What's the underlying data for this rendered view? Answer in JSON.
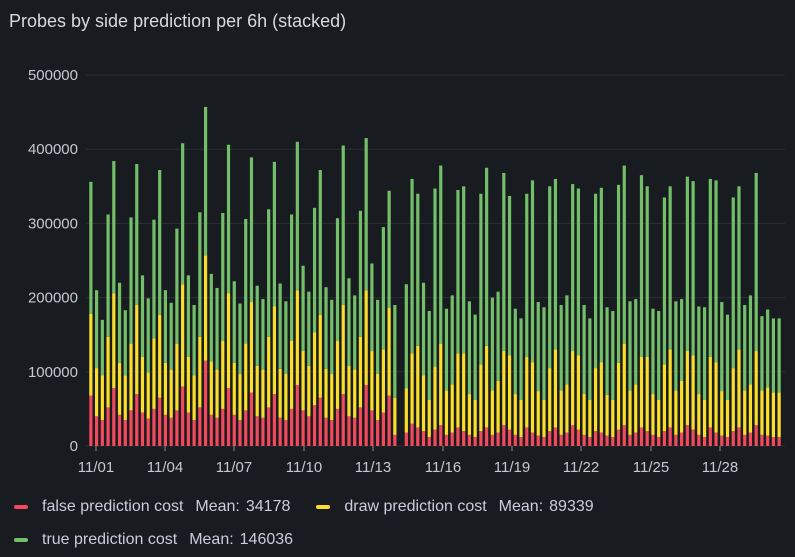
{
  "panel": {
    "title": "Probes by side prediction per 6h (stacked)"
  },
  "chart_data": {
    "type": "bar",
    "stacked": true,
    "title": "Probes by side prediction per 6h (stacked)",
    "xlabel": "",
    "ylabel": "",
    "ylim": [
      0,
      500000
    ],
    "yticks": [
      "0",
      "100000",
      "200000",
      "300000",
      "400000",
      "500000"
    ],
    "xticks": [
      "11/01",
      "11/04",
      "11/07",
      "11/10",
      "11/13",
      "11/16",
      "11/19",
      "11/22",
      "11/25",
      "11/28"
    ],
    "grid": true,
    "legend_position": "bottom",
    "gap_after_index": 53,
    "categories_note": "6-hour buckets, 4 per day, 11/01 through 11/30",
    "series": [
      {
        "name": "false prediction cost",
        "color": "#f2495c",
        "mean": "34178",
        "values": [
          68000,
          40000,
          35000,
          52000,
          78000,
          42000,
          35000,
          48000,
          70000,
          45000,
          37000,
          50000,
          65000,
          42000,
          38000,
          48000,
          80000,
          45000,
          35000,
          52000,
          115000,
          42000,
          38000,
          50000,
          78000,
          42000,
          35000,
          48000,
          72000,
          40000,
          38000,
          52000,
          70000,
          38000,
          35000,
          50000,
          82000,
          48000,
          40000,
          55000,
          65000,
          38000,
          35000,
          50000,
          70000,
          40000,
          38000,
          52000,
          82000,
          48000,
          35000,
          45000,
          68000,
          15000,
          18000,
          30000,
          25000,
          20000,
          12000,
          22000,
          28000,
          15000,
          18000,
          25000,
          20000,
          15000,
          12000,
          20000,
          25000,
          15000,
          18000,
          28000,
          22000,
          15000,
          12000,
          25000,
          18000,
          14000,
          12000,
          20000,
          25000,
          15000,
          18000,
          28000,
          22000,
          15000,
          12000,
          20000,
          18000,
          14000,
          12000,
          22000,
          28000,
          15000,
          18000,
          25000,
          20000,
          15000,
          12000,
          20000,
          25000,
          15000,
          18000,
          28000,
          22000,
          15000,
          12000,
          25000,
          18000,
          14000,
          12000,
          20000,
          25000,
          15000,
          18000,
          28000,
          15000,
          14000,
          12000,
          12000
        ]
      },
      {
        "name": "draw prediction cost",
        "color": "#fade2a",
        "mean": "89339",
        "values": [
          110000,
          65000,
          60000,
          95000,
          128000,
          70000,
          60000,
          90000,
          120000,
          75000,
          62000,
          95000,
          112000,
          70000,
          65000,
          90000,
          138000,
          75000,
          60000,
          95000,
          142000,
          72000,
          65000,
          92000,
          128000,
          70000,
          62000,
          90000,
          122000,
          68000,
          65000,
          95000,
          118000,
          66000,
          62000,
          92000,
          128000,
          80000,
          68000,
          98000,
          112000,
          66000,
          62000,
          92000,
          120000,
          68000,
          65000,
          95000,
          128000,
          80000,
          62000,
          85000,
          118000,
          50000,
          60000,
          95000,
          110000,
          75000,
          50000,
          85000,
          110000,
          60000,
          65000,
          100000,
          105000,
          55000,
          50000,
          90000,
          110000,
          60000,
          70000,
          100000,
          100000,
          55000,
          50000,
          95000,
          95000,
          60000,
          50000,
          85000,
          105000,
          60000,
          65000,
          100000,
          100000,
          55000,
          50000,
          85000,
          95000,
          55000,
          50000,
          90000,
          110000,
          60000,
          65000,
          95000,
          100000,
          55000,
          50000,
          90000,
          105000,
          60000,
          70000,
          100000,
          100000,
          55000,
          50000,
          95000,
          95000,
          60000,
          50000,
          85000,
          105000,
          60000,
          65000,
          100000,
          60000,
          65000,
          60000,
          60000
        ]
      },
      {
        "name": "true prediction cost",
        "color": "#73bf69",
        "mean": "146036",
        "values": [
          178000,
          105000,
          75000,
          165000,
          178000,
          108000,
          88000,
          170000,
          190000,
          110000,
          100000,
          160000,
          195000,
          98000,
          90000,
          155000,
          190000,
          110000,
          95000,
          168000,
          200000,
          118000,
          110000,
          172000,
          200000,
          110000,
          95000,
          168000,
          195000,
          108000,
          95000,
          172000,
          195000,
          115000,
          98000,
          170000,
          200000,
          115000,
          100000,
          168000,
          195000,
          110000,
          100000,
          165000,
          215000,
          118000,
          100000,
          170000,
          205000,
          118000,
          100000,
          165000,
          158000,
          125000,
          140000,
          235000,
          205000,
          125000,
          120000,
          240000,
          240000,
          110000,
          120000,
          220000,
          225000,
          125000,
          115000,
          230000,
          240000,
          125000,
          120000,
          240000,
          215000,
          115000,
          110000,
          220000,
          245000,
          120000,
          125000,
          245000,
          230000,
          115000,
          120000,
          225000,
          225000,
          120000,
          110000,
          235000,
          235000,
          118000,
          120000,
          240000,
          240000,
          120000,
          115000,
          245000,
          230000,
          115000,
          120000,
          225000,
          220000,
          120000,
          110000,
          235000,
          235000,
          118000,
          125000,
          240000,
          245000,
          120000,
          115000,
          230000,
          220000,
          115000,
          120000,
          240000,
          100000,
          105000,
          100000,
          100000
        ]
      }
    ]
  }
}
